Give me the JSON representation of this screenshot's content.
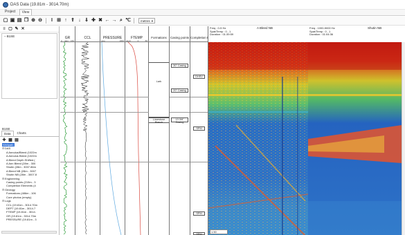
{
  "window": {
    "title": "DAS Data (19.81m - 3014.70m)"
  },
  "menu": {
    "tabs": [
      "Project",
      "View"
    ]
  },
  "toolbar": {
    "units": "metres"
  },
  "left_panel": {
    "wells": [
      "B1SE"
    ],
    "data_label": "B1SE",
    "tabs": [
      "Data",
      "Charts"
    ],
    "tree": {
      "root": "Wellpath",
      "das": {
        "label": "DAS",
        "items": [
          "A Annulus/Bleed (1022m",
          "A Annulus Bleed (1022m",
          "A Bleed Depth Shifted (",
          "A Ann Bleed (28m - 300",
          "Shutin (28m - 3007.86m",
          "A Bleed NB (28m - 3007",
          "Shutin NB (28m - 3007.8"
        ]
      },
      "engineering": {
        "label": "Engineering",
        "items": [
          "Casing points (219m - 3",
          "Completion Elements (4"
        ]
      },
      "geology": {
        "label": "Geology",
        "items": [
          "Formations (486m - 106",
          "Core photos (empty)"
        ]
      },
      "logs": {
        "label": "Logs",
        "items": [
          "CCL (19.81m - 3014.70m",
          "DEPT (19.81m - 3014.7",
          "FTEMP (19.81m - 3014.",
          "GR (19.81m - 3014.70m",
          "PRESSURE (19.81m - 3"
        ]
      }
    }
  },
  "tracks": {
    "gr": {
      "name": "GR",
      "scale": [
        "gapi",
        "0",
        "150"
      ]
    },
    "ccl": {
      "name": "CCL",
      "scale": [
        "",
        "",
        ""
      ]
    },
    "pressure": {
      "name": "PRESSURE",
      "scale": [
        "psig",
        "1000"
      ]
    },
    "ftemp": {
      "name": "FTEMP",
      "scale": [
        "degC",
        "0",
        "80"
      ]
    },
    "formations": {
      "name": "Formations"
    },
    "casing": {
      "name": "Casing points"
    },
    "completion": {
      "name": "Completion Elem"
    }
  },
  "formations": {
    "lark": "Lark",
    "balder": "Limestone Blanch"
  },
  "casing": {
    "c30": "30\" Casing",
    "c20": "20\" Casing",
    "c13": "13 3/8\" Casing"
  },
  "completion": {
    "item1": "DHSV",
    "item2": "SPM",
    "item3": "SPM",
    "item4": "SPM"
  },
  "spectrograms": {
    "left": {
      "title": "A Bleed NB",
      "freq": "Freq : 0-5 Hz",
      "spat": "Spat/Temp : 0 , 1",
      "duration": "Duration : 01:39:59"
    },
    "right": {
      "title": "Shutin NB",
      "freq": "Freq : 1000-5000 Hz",
      "spat": "Spat/Temp : 0 , 1",
      "duration": "Duration : 01:04:36"
    },
    "value_box": "1.50"
  }
}
